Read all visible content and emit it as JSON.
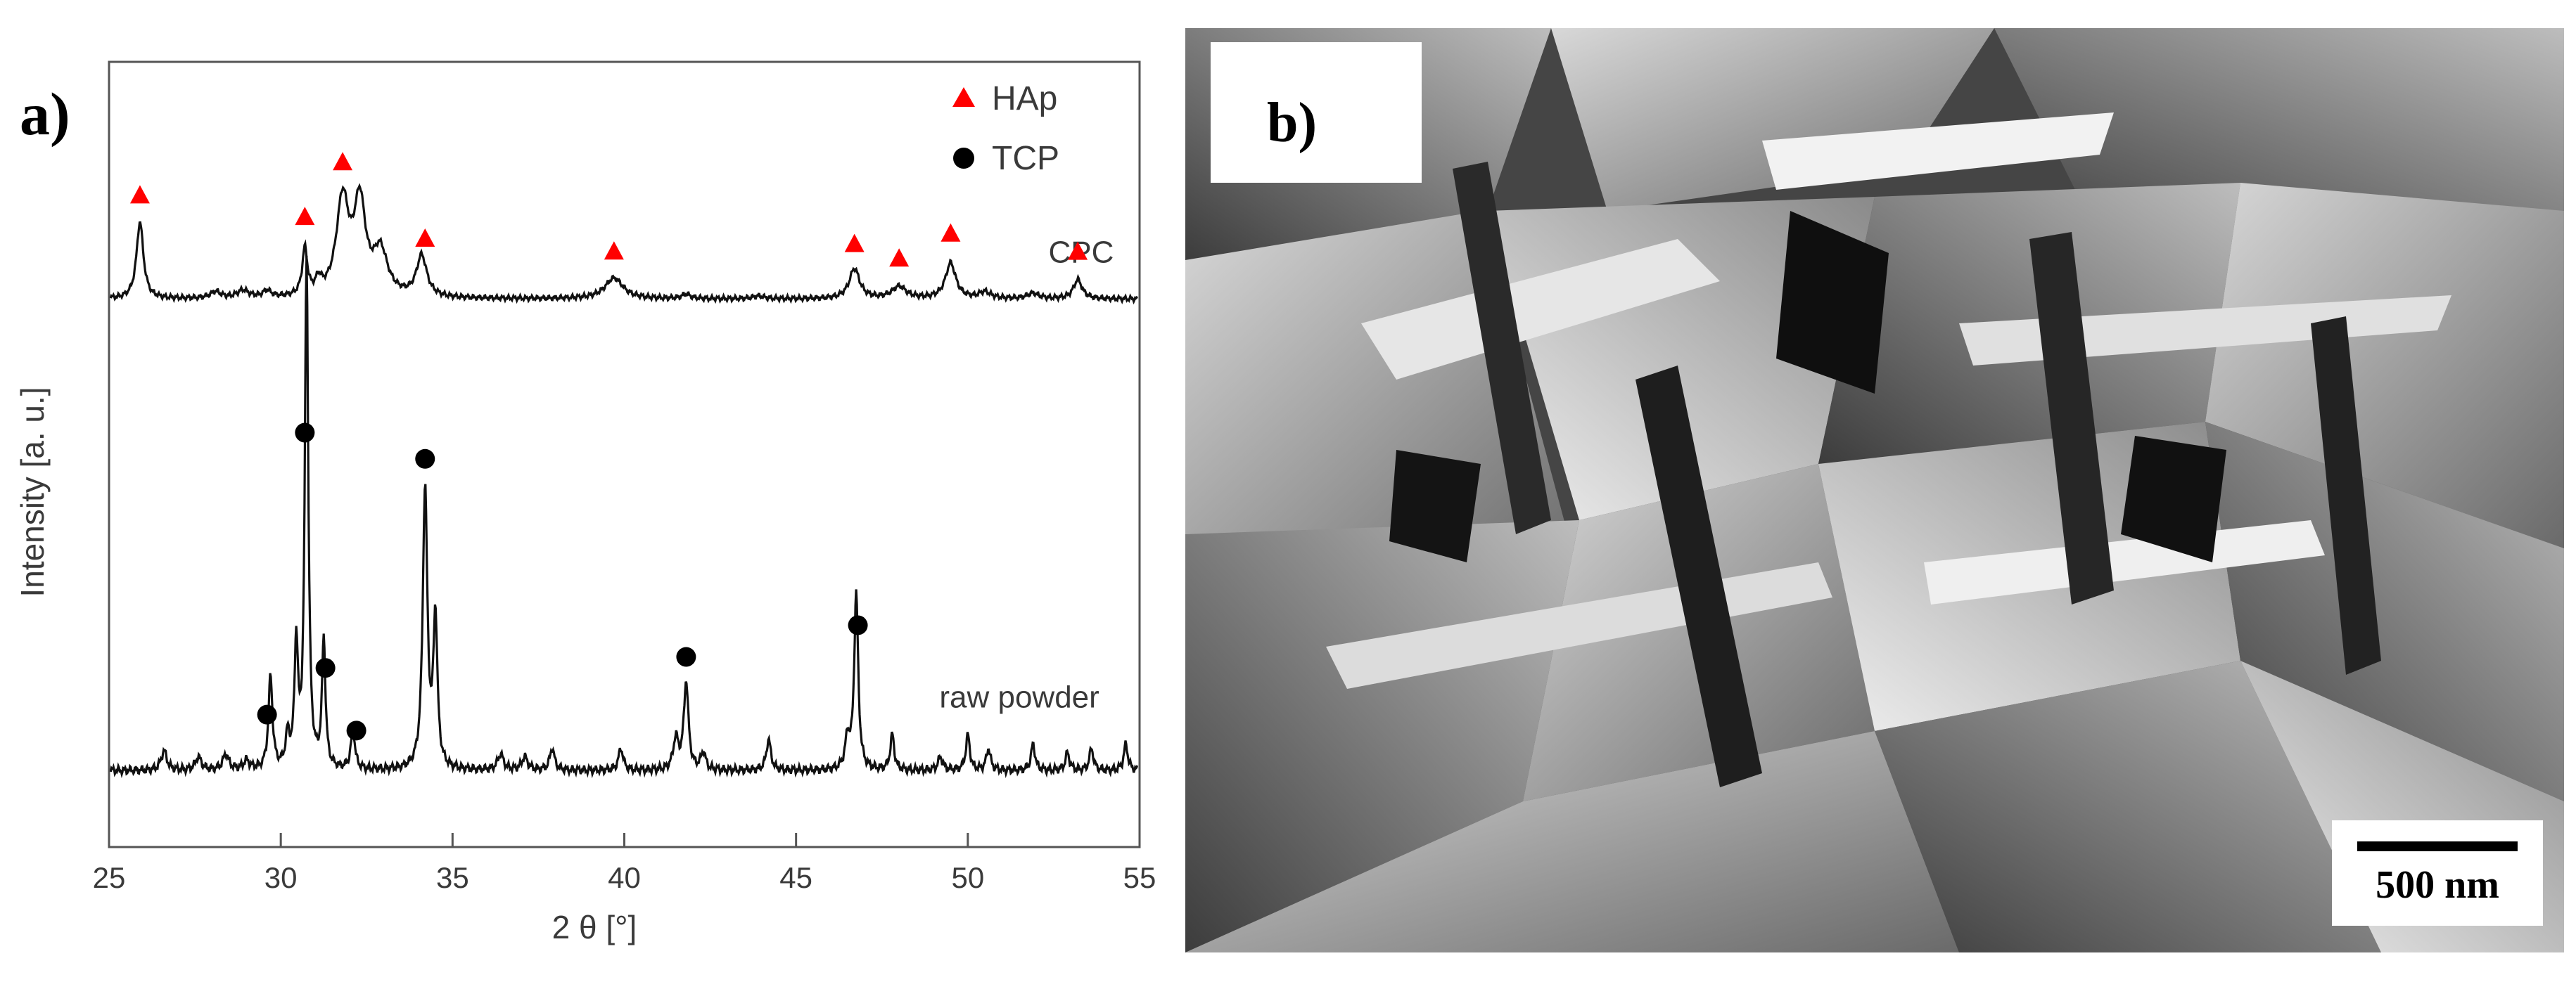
{
  "panels": {
    "a_label": "a)",
    "b_label": "b)"
  },
  "chart_data": {
    "type": "line",
    "title": "",
    "xlabel": "2 θ [°]",
    "ylabel": "Intensity [a. u.]",
    "xlim": [
      25,
      55
    ],
    "xticks": [
      "25",
      "30",
      "35",
      "40",
      "45",
      "50",
      "55"
    ],
    "legend": {
      "placement": "top-right",
      "entries": [
        {
          "name": "HAp",
          "marker": "triangle",
          "color": "#ff0000"
        },
        {
          "name": "TCP",
          "marker": "circle",
          "color": "#000000"
        }
      ]
    },
    "series": [
      {
        "name": "CPC",
        "baseline": 0.93,
        "peaks": [
          [
            25.9,
            1.4,
            0.12
          ],
          [
            28.1,
            0.12,
            0.18
          ],
          [
            28.9,
            0.14,
            0.2
          ],
          [
            29.6,
            0.12,
            0.15
          ],
          [
            30.7,
            0.85,
            0.09
          ],
          [
            31.1,
            0.25,
            0.1
          ],
          [
            31.8,
            1.75,
            0.22
          ],
          [
            32.3,
            1.65,
            0.2
          ],
          [
            32.9,
            0.8,
            0.25
          ],
          [
            34.1,
            0.75,
            0.18
          ],
          [
            39.7,
            0.38,
            0.32
          ],
          [
            41.8,
            0.08,
            0.15
          ],
          [
            43.9,
            0.05,
            0.2
          ],
          [
            46.7,
            0.55,
            0.18
          ],
          [
            48.0,
            0.22,
            0.25
          ],
          [
            49.5,
            0.65,
            0.18
          ],
          [
            50.5,
            0.12,
            0.2
          ],
          [
            51.9,
            0.1,
            0.2
          ],
          [
            53.2,
            0.35,
            0.15
          ]
        ],
        "markers": [
          {
            "x": 25.9,
            "type": "HAp"
          },
          {
            "x": 30.7,
            "type": "HAp"
          },
          {
            "x": 31.8,
            "type": "HAp"
          },
          {
            "x": 34.2,
            "type": "HAp"
          },
          {
            "x": 39.7,
            "type": "HAp"
          },
          {
            "x": 46.7,
            "type": "HAp"
          },
          {
            "x": 48.0,
            "type": "HAp"
          },
          {
            "x": 49.5,
            "type": "HAp"
          },
          {
            "x": 53.2,
            "type": "HAp"
          }
        ]
      },
      {
        "name": "raw powder",
        "baseline": 0.03,
        "peaks": [
          [
            26.6,
            0.22,
            0.1
          ],
          [
            27.6,
            0.15,
            0.1
          ],
          [
            28.4,
            0.18,
            0.1
          ],
          [
            29.0,
            0.1,
            0.1
          ],
          [
            29.7,
            1.05,
            0.07
          ],
          [
            30.2,
            0.35,
            0.07
          ],
          [
            30.45,
            1.4,
            0.06
          ],
          [
            30.75,
            5.8,
            0.06
          ],
          [
            31.25,
            1.45,
            0.06
          ],
          [
            32.1,
            0.45,
            0.07
          ],
          [
            34.2,
            3.2,
            0.08
          ],
          [
            34.5,
            1.7,
            0.07
          ],
          [
            36.4,
            0.18,
            0.1
          ],
          [
            37.1,
            0.15,
            0.1
          ],
          [
            37.9,
            0.25,
            0.08
          ],
          [
            39.9,
            0.25,
            0.08
          ],
          [
            41.5,
            0.35,
            0.09
          ],
          [
            41.8,
            1.0,
            0.08
          ],
          [
            42.3,
            0.2,
            0.08
          ],
          [
            44.2,
            0.35,
            0.08
          ],
          [
            46.5,
            0.35,
            0.08
          ],
          [
            46.75,
            2.0,
            0.07
          ],
          [
            47.8,
            0.4,
            0.07
          ],
          [
            49.2,
            0.15,
            0.08
          ],
          [
            50.0,
            0.4,
            0.07
          ],
          [
            50.6,
            0.25,
            0.07
          ],
          [
            51.9,
            0.3,
            0.07
          ],
          [
            52.9,
            0.2,
            0.07
          ],
          [
            53.6,
            0.25,
            0.07
          ],
          [
            54.6,
            0.3,
            0.07
          ]
        ],
        "markers": [
          {
            "x": 29.6,
            "type": "TCP"
          },
          {
            "x": 30.7,
            "type": "TCP"
          },
          {
            "x": 31.3,
            "type": "TCP"
          },
          {
            "x": 32.2,
            "type": "TCP"
          },
          {
            "x": 34.2,
            "type": "TCP"
          },
          {
            "x": 41.8,
            "type": "TCP"
          },
          {
            "x": 46.8,
            "type": "TCP"
          }
        ]
      }
    ],
    "grid": false
  },
  "sem": {
    "scalebar_label": "500 nm"
  }
}
